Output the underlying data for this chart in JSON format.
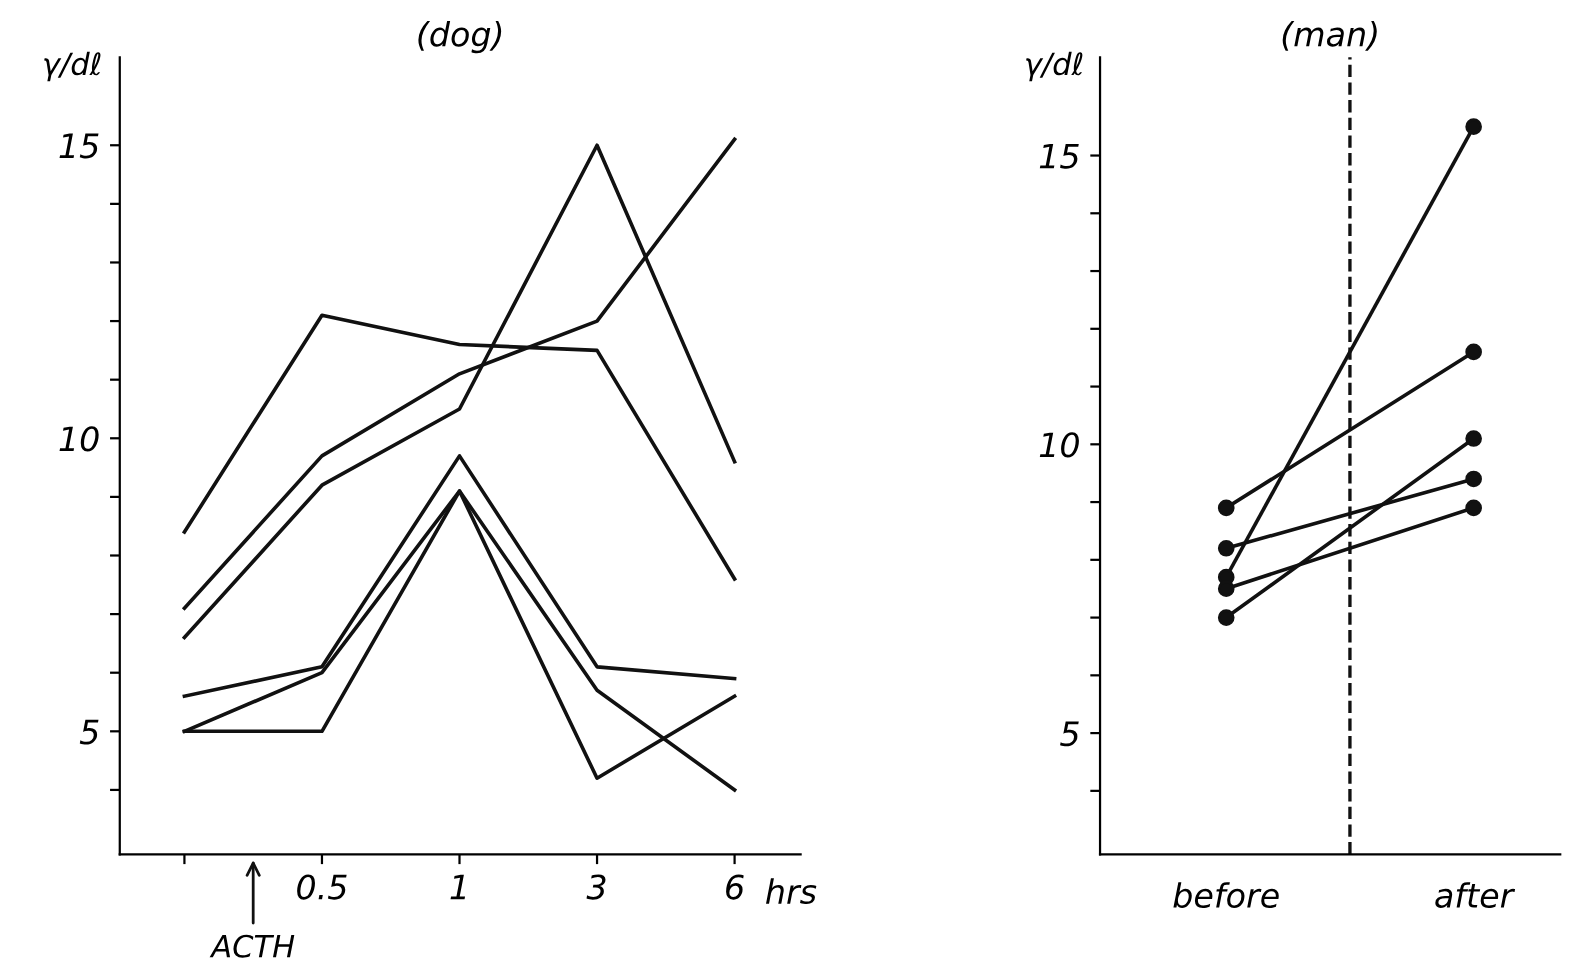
{
  "chart_data": [
    {
      "type": "line",
      "title": "(dog)",
      "ylabel": "γ/dℓ",
      "xlabel": "hrs",
      "categories": [
        null,
        "0.5",
        "1",
        "3",
        "6"
      ],
      "marker": "none",
      "line_style": "solid",
      "series": [
        {
          "color": "#111111",
          "values": [
            8.4,
            12.1,
            11.6,
            11.5,
            7.6
          ]
        },
        {
          "color": "#111111",
          "values": [
            7.1,
            9.7,
            11.1,
            12.0,
            15.1
          ]
        },
        {
          "color": "#111111",
          "values": [
            6.6,
            9.2,
            10.5,
            15.0,
            9.6
          ]
        },
        {
          "color": "#111111",
          "values": [
            5.6,
            6.1,
            9.7,
            6.1,
            5.9
          ]
        },
        {
          "color": "#111111",
          "values": [
            5.0,
            6.0,
            9.1,
            5.7,
            4.0
          ]
        },
        {
          "color": "#111111",
          "values": [
            5.0,
            5.0,
            9.1,
            4.2,
            5.6
          ]
        }
      ],
      "ylim": [
        2.9,
        16.5
      ],
      "yticks": [
        {
          "value": 4,
          "label": null
        },
        5,
        {
          "value": 6,
          "label": null
        },
        {
          "value": 7,
          "label": null
        },
        {
          "value": 8,
          "label": null
        },
        {
          "value": 9,
          "label": null
        },
        10,
        {
          "value": 11,
          "label": null
        },
        {
          "value": 12,
          "label": null
        },
        {
          "value": 13,
          "label": null
        },
        {
          "value": 14,
          "label": null
        },
        15
      ],
      "annotations": [
        "ACTH"
      ]
    },
    {
      "type": "line",
      "title": "(man)",
      "ylabel": "γ/dℓ",
      "categories": [
        "before",
        "after"
      ],
      "marker": "circle",
      "line_style": "solid",
      "series": [
        {
          "color": "#111111",
          "values": [
            8.9,
            11.6
          ]
        },
        {
          "color": "#111111",
          "values": [
            8.2,
            9.4
          ]
        },
        {
          "color": "#111111",
          "values": [
            7.7,
            15.5
          ]
        },
        {
          "color": "#111111",
          "values": [
            7.5,
            8.9
          ]
        },
        {
          "color": "#111111",
          "values": [
            7.0,
            10.1
          ]
        }
      ],
      "ylim": [
        2.9,
        16.7
      ],
      "yticks": [
        {
          "value": 4,
          "label": null
        },
        5,
        {
          "value": 6,
          "label": null
        },
        {
          "value": 7,
          "label": null
        },
        {
          "value": 8,
          "label": null
        },
        {
          "value": 9,
          "label": null
        },
        10,
        {
          "value": 11,
          "label": null
        },
        {
          "value": 12,
          "label": null
        },
        {
          "value": 13,
          "label": null
        },
        {
          "value": 14,
          "label": null
        },
        15
      ]
    }
  ]
}
